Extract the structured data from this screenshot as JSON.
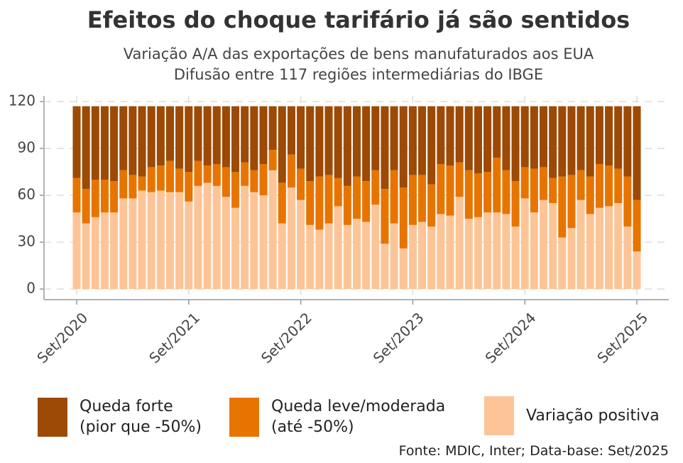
{
  "chart_data": {
    "type": "stacked_bar",
    "title": "Efeitos do choque tarifário já são sentidos",
    "subtitle": [
      "Variação A/A das exportações de bens manufaturados aos EUA",
      "Difusão entre 117 regiões intermediárias do IBGE"
    ],
    "source": "Fonte: MDIC, Inter; Data-base: Set/2025",
    "categories": [
      "Set/2020",
      null,
      null,
      null,
      null,
      null,
      null,
      null,
      null,
      null,
      null,
      null,
      "Set/2021",
      null,
      null,
      null,
      null,
      null,
      null,
      null,
      null,
      null,
      null,
      null,
      "Set/2022",
      null,
      null,
      null,
      null,
      null,
      null,
      null,
      null,
      null,
      null,
      null,
      "Set/2023",
      null,
      null,
      null,
      null,
      null,
      null,
      null,
      null,
      null,
      null,
      null,
      "Set/2024",
      null,
      null,
      null,
      null,
      null,
      null,
      null,
      null,
      null,
      null,
      null,
      "Set/2025"
    ],
    "series": [
      {
        "name": "Variação positiva",
        "color": "#fdc597",
        "values": [
          49,
          42,
          46,
          49,
          49,
          58,
          58,
          63,
          62,
          63,
          62,
          62,
          56,
          66,
          68,
          66,
          59,
          52,
          66,
          62,
          60,
          76,
          42,
          65,
          57,
          41,
          38,
          42,
          53,
          41,
          45,
          43,
          54,
          29,
          42,
          26,
          41,
          43,
          40,
          48,
          47,
          59,
          45,
          46,
          49,
          49,
          48,
          40,
          58,
          49,
          57,
          55,
          33,
          39,
          57,
          48,
          52,
          53,
          55,
          40,
          24
        ]
      },
      {
        "name": "Queda leve/moderada\n(até -50%)",
        "color": "#e87400",
        "values": [
          22,
          22,
          24,
          21,
          20,
          18,
          15,
          9,
          16,
          16,
          20,
          15,
          19,
          16,
          11,
          14,
          19,
          23,
          15,
          14,
          20,
          13,
          26,
          21,
          20,
          28,
          34,
          31,
          18,
          25,
          27,
          26,
          22,
          35,
          34,
          39,
          32,
          30,
          27,
          32,
          32,
          22,
          31,
          28,
          26,
          35,
          28,
          29,
          20,
          28,
          21,
          16,
          39,
          34,
          19,
          24,
          28,
          26,
          22,
          32,
          33
        ]
      },
      {
        "name": "Queda forte\n(pior que -50%)",
        "color": "#9c4a05",
        "values": [
          46,
          53,
          47,
          47,
          48,
          41,
          44,
          45,
          39,
          38,
          35,
          40,
          42,
          35,
          38,
          37,
          39,
          42,
          36,
          41,
          37,
          28,
          49,
          31,
          40,
          48,
          45,
          44,
          46,
          51,
          45,
          48,
          41,
          53,
          41,
          52,
          44,
          44,
          50,
          37,
          38,
          36,
          41,
          43,
          42,
          33,
          41,
          48,
          39,
          40,
          39,
          46,
          45,
          44,
          41,
          45,
          37,
          38,
          40,
          45,
          60
        ]
      }
    ],
    "ylim": [
      -10,
      126
    ],
    "yticks": [
      0,
      30,
      60,
      90,
      120
    ],
    "grid": true
  }
}
